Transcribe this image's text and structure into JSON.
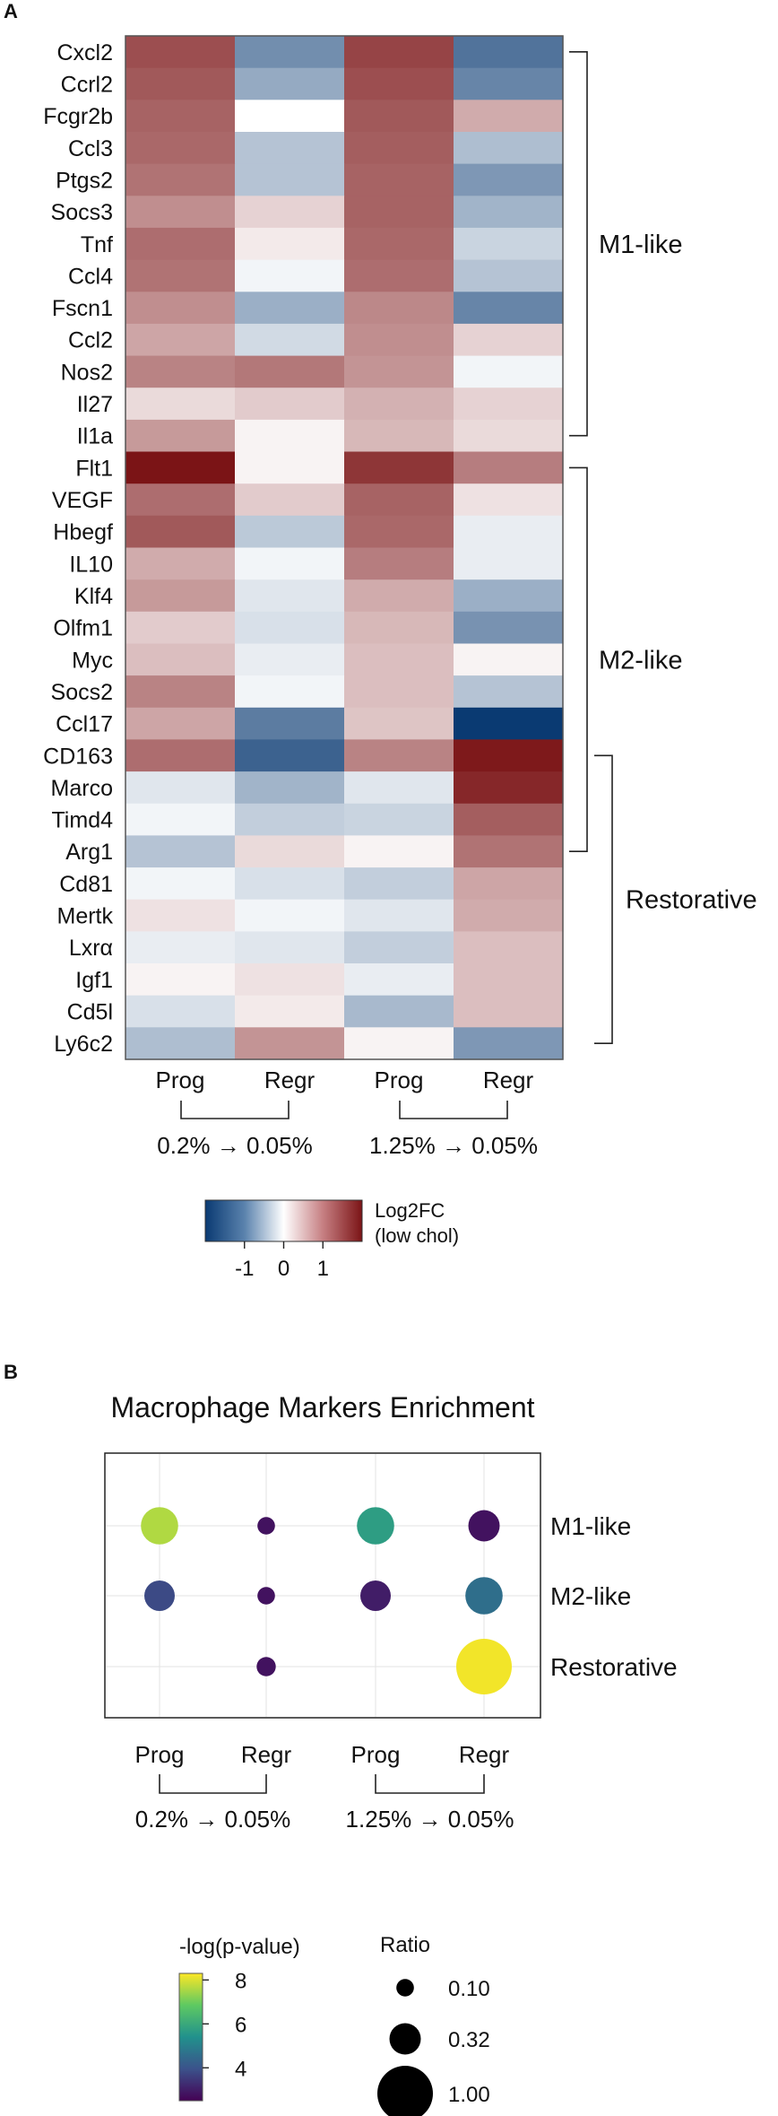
{
  "panels": {
    "a_label": "A",
    "b_label": "B"
  },
  "heatmap": {
    "type": "heatmap",
    "genes": [
      "Cxcl2",
      "Ccrl2",
      "Fcgr2b",
      "Ccl3",
      "Ptgs2",
      "Socs3",
      "Tnf",
      "Ccl4",
      "Fscn1",
      "Ccl2",
      "Nos2",
      "Il27",
      "Il1a",
      "Flt1",
      "VEGF",
      "Hbegf",
      "IL10",
      "Klf4",
      "Olfm1",
      "Myc",
      "Socs2",
      "Ccl17",
      "CD163",
      "Marco",
      "Timd4",
      "Arg1",
      "Cd81",
      "Mertk",
      "Lxrα",
      "Igf1",
      "Cd5l",
      "Ly6c2"
    ],
    "columns": [
      "Prog",
      "Regr",
      "Prog",
      "Regr"
    ],
    "comparisons": [
      "0.2% → 0.05%",
      "1.25% → 0.05%"
    ],
    "values": [
      [
        1.4,
        -1.0,
        1.5,
        -1.3
      ],
      [
        1.3,
        -0.7,
        1.4,
        -1.1
      ],
      [
        1.2,
        0.0,
        1.3,
        0.55
      ],
      [
        1.15,
        -0.45,
        1.25,
        -0.5
      ],
      [
        1.05,
        -0.45,
        1.2,
        -0.9
      ],
      [
        0.8,
        0.25,
        1.2,
        -0.6
      ],
      [
        1.1,
        0.1,
        1.15,
        -0.3
      ],
      [
        1.05,
        -0.05,
        1.1,
        -0.45
      ],
      [
        0.8,
        -0.65,
        0.85,
        -1.1
      ],
      [
        0.6,
        -0.25,
        0.8,
        0.25
      ],
      [
        0.9,
        1.0,
        0.75,
        -0.05
      ],
      [
        0.2,
        0.3,
        0.5,
        0.25
      ],
      [
        0.7,
        0.05,
        0.45,
        0.2
      ],
      [
        2.0,
        0.05,
        1.65,
        0.95
      ],
      [
        1.1,
        0.3,
        1.2,
        0.15
      ],
      [
        1.3,
        -0.4,
        1.15,
        -0.1
      ],
      [
        0.55,
        -0.05,
        0.95,
        -0.1
      ],
      [
        0.7,
        -0.15,
        0.55,
        -0.65
      ],
      [
        0.3,
        -0.2,
        0.45,
        -0.95
      ],
      [
        0.4,
        -0.1,
        0.4,
        0.05
      ],
      [
        0.9,
        -0.05,
        0.4,
        -0.45
      ],
      [
        0.6,
        -1.2,
        0.35,
        -2.0
      ],
      [
        1.1,
        -1.5,
        0.9,
        1.95
      ],
      [
        -0.15,
        -0.6,
        -0.15,
        1.8
      ],
      [
        -0.05,
        -0.35,
        -0.3,
        1.25
      ],
      [
        -0.45,
        0.2,
        0.05,
        1.05
      ],
      [
        -0.05,
        -0.2,
        -0.35,
        0.6
      ],
      [
        0.15,
        -0.05,
        -0.15,
        0.55
      ],
      [
        -0.1,
        -0.15,
        -0.35,
        0.4
      ],
      [
        0.05,
        0.15,
        -0.1,
        0.4
      ],
      [
        -0.2,
        0.1,
        -0.55,
        0.4
      ],
      [
        -0.5,
        0.75,
        0.05,
        -0.9
      ]
    ],
    "groups": [
      {
        "name": "M1-like",
        "from": 0,
        "to": 12
      },
      {
        "name": "M2-like",
        "from": 13,
        "to": 25
      },
      {
        "name": "Restorative",
        "from": 22,
        "to": 31
      }
    ],
    "colorbar": {
      "title_line1": "Log2FC",
      "title_line2": "(low chol)",
      "ticks": [
        "-1",
        "0",
        "1"
      ],
      "tick_values": [
        -1,
        0,
        1
      ],
      "range": [
        -2,
        2
      ],
      "colors": [
        "#0a3a72",
        "#ffffff",
        "#7b1416"
      ]
    }
  },
  "chart_data": {
    "type": "scatter",
    "title": "Macrophage Markers Enrichment",
    "columns": [
      "Prog",
      "Regr",
      "Prog",
      "Regr"
    ],
    "comparisons": [
      "0.2% → 0.05%",
      "1.25% → 0.05%"
    ],
    "rows": [
      "M1-like",
      "M2-like",
      "Restorative"
    ],
    "points": [
      {
        "row": "M1-like",
        "col": 0,
        "neglogp": 7.6,
        "ratio": 0.45
      },
      {
        "row": "M1-like",
        "col": 1,
        "neglogp": 2.8,
        "ratio": 0.1
      },
      {
        "row": "M1-like",
        "col": 2,
        "neglogp": 5.7,
        "ratio": 0.45
      },
      {
        "row": "M1-like",
        "col": 3,
        "neglogp": 2.8,
        "ratio": 0.32
      },
      {
        "row": "M2-like",
        "col": 0,
        "neglogp": 3.8,
        "ratio": 0.3
      },
      {
        "row": "M2-like",
        "col": 1,
        "neglogp": 2.8,
        "ratio": 0.1
      },
      {
        "row": "M2-like",
        "col": 2,
        "neglogp": 3.0,
        "ratio": 0.3
      },
      {
        "row": "M2-like",
        "col": 3,
        "neglogp": 4.6,
        "ratio": 0.45
      },
      {
        "row": "Restorative",
        "col": 1,
        "neglogp": 2.8,
        "ratio": 0.12
      },
      {
        "row": "Restorative",
        "col": 3,
        "neglogp": 8.2,
        "ratio": 1.0
      }
    ],
    "color_legend": {
      "title": "-log(p-value)",
      "ticks": [
        "8",
        "6",
        "4"
      ],
      "tick_values": [
        8,
        6,
        4
      ],
      "range": [
        2.5,
        8.3
      ]
    },
    "size_legend": {
      "title": "Ratio",
      "labels": [
        "0.10",
        "0.32",
        "1.00"
      ],
      "values": [
        0.1,
        0.32,
        1.0
      ]
    }
  }
}
